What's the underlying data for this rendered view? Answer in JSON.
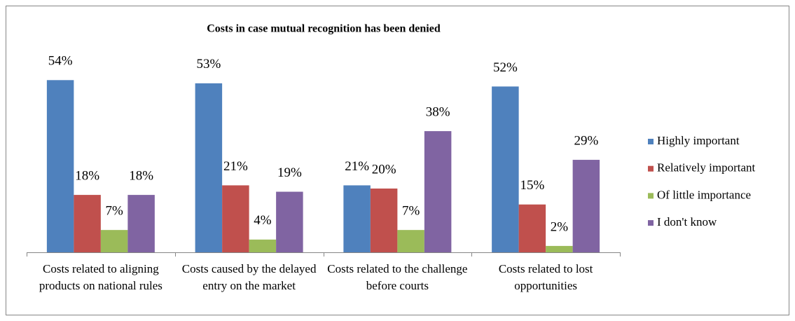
{
  "chart_data": {
    "type": "bar",
    "title": "Costs in case mutual recognition has been denied",
    "categories": [
      "Costs related to aligning products on national rules",
      "Costs caused by the delayed entry on the market",
      "Costs related to the challenge before courts",
      "Costs related to lost opportunities"
    ],
    "series": [
      {
        "name": "Highly important",
        "color": "#4f81bd",
        "values": [
          54,
          53,
          21,
          52
        ],
        "value_labels": [
          "54%",
          "53%",
          "21%",
          "52%"
        ]
      },
      {
        "name": "Relatively important",
        "color": "#c0504d",
        "values": [
          18,
          21,
          20,
          15
        ],
        "value_labels": [
          "18%",
          "21%",
          "20%",
          "15%"
        ]
      },
      {
        "name": "Of little importance",
        "color": "#9bbb59",
        "values": [
          7,
          4,
          7,
          2
        ],
        "value_labels": [
          "7%",
          "4%",
          "7%",
          "2%"
        ]
      },
      {
        "name": "I don't know",
        "color": "#8064a2",
        "values": [
          18,
          19,
          38,
          29
        ],
        "value_labels": [
          "18%",
          "19%",
          "38%",
          "29%"
        ]
      }
    ],
    "ylim": [
      0,
      60
    ],
    "legend": "right"
  }
}
